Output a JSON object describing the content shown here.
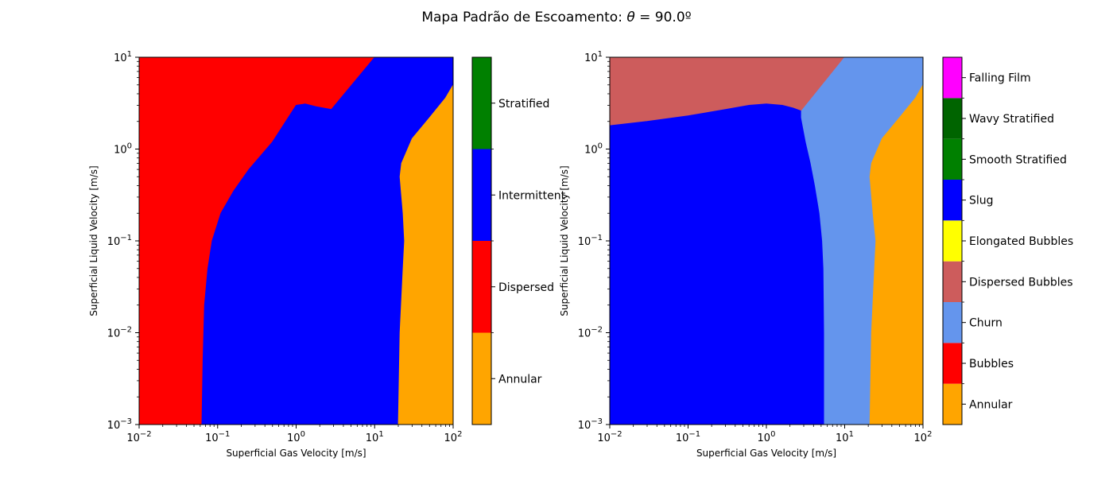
{
  "figure": {
    "title_prefix": "Mapa Padrão de Escoamento: ",
    "title_theta": "θ",
    "title_suffix": " = 90.0º"
  },
  "chart_data": [
    {
      "type": "heatmap",
      "xlabel": "Superficial Gas Velocity [m/s]",
      "ylabel": "Superficial Liquid Velocity [m/s]",
      "xscale": "log",
      "yscale": "log",
      "xlim": [
        0.01,
        100
      ],
      "ylim": [
        0.001,
        10
      ],
      "xticks": [
        {
          "base": "10",
          "exp": "−2"
        },
        {
          "base": "10",
          "exp": "−1"
        },
        {
          "base": "10",
          "exp": "0"
        },
        {
          "base": "10",
          "exp": "1"
        },
        {
          "base": "10",
          "exp": "2"
        }
      ],
      "yticks": [
        {
          "base": "10",
          "exp": "−3"
        },
        {
          "base": "10",
          "exp": "−2"
        },
        {
          "base": "10",
          "exp": "−1"
        },
        {
          "base": "10",
          "exp": "0"
        },
        {
          "base": "10",
          "exp": "1"
        }
      ],
      "colorbar": [
        {
          "label": "Annular",
          "color": "#ffa500"
        },
        {
          "label": "Dispersed",
          "color": "#ff0000"
        },
        {
          "label": "Intermittent",
          "color": "#0000ff"
        },
        {
          "label": "Stratified",
          "color": "#008000"
        }
      ],
      "regions": [
        {
          "pattern": "Dispersed",
          "color": "#ff0000",
          "polygon": [
            [
              0.01,
              0.001
            ],
            [
              0.063,
              0.001
            ],
            [
              0.065,
              0.005
            ],
            [
              0.068,
              0.02
            ],
            [
              0.075,
              0.05
            ],
            [
              0.085,
              0.1
            ],
            [
              0.11,
              0.2
            ],
            [
              0.16,
              0.35
            ],
            [
              0.25,
              0.6
            ],
            [
              0.5,
              1.2
            ],
            [
              1.0,
              3.0
            ],
            [
              1.3,
              3.1
            ],
            [
              1.8,
              2.9
            ],
            [
              2.8,
              2.7
            ],
            [
              10,
              10
            ],
            [
              0.01,
              10
            ]
          ]
        },
        {
          "pattern": "Intermittent",
          "color": "#0000ff",
          "polygon": [
            [
              0.063,
              0.001
            ],
            [
              20,
              0.001
            ],
            [
              21,
              0.01
            ],
            [
              23,
              0.05
            ],
            [
              24,
              0.1
            ],
            [
              23,
              0.2
            ],
            [
              21,
              0.5
            ],
            [
              22,
              0.7
            ],
            [
              30,
              1.3
            ],
            [
              50,
              2.2
            ],
            [
              80,
              3.6
            ],
            [
              100,
              5
            ],
            [
              100,
              10
            ],
            [
              10,
              10
            ],
            [
              2.8,
              2.7
            ],
            [
              1.8,
              2.9
            ],
            [
              1.3,
              3.1
            ],
            [
              1.0,
              3.0
            ],
            [
              0.5,
              1.2
            ],
            [
              0.25,
              0.6
            ],
            [
              0.16,
              0.35
            ],
            [
              0.11,
              0.2
            ],
            [
              0.085,
              0.1
            ],
            [
              0.075,
              0.05
            ],
            [
              0.068,
              0.02
            ],
            [
              0.065,
              0.005
            ]
          ]
        },
        {
          "pattern": "Annular",
          "color": "#ffa500",
          "polygon": [
            [
              20,
              0.001
            ],
            [
              100,
              0.001
            ],
            [
              100,
              5
            ],
            [
              80,
              3.6
            ],
            [
              50,
              2.2
            ],
            [
              30,
              1.3
            ],
            [
              22,
              0.7
            ],
            [
              21,
              0.5
            ],
            [
              23,
              0.2
            ],
            [
              24,
              0.1
            ],
            [
              23,
              0.05
            ],
            [
              21,
              0.01
            ]
          ]
        }
      ]
    },
    {
      "type": "heatmap",
      "xlabel": "Superficial Gas Velocity [m/s]",
      "ylabel": "Superficial Liquid Velocity [m/s]",
      "xscale": "log",
      "yscale": "log",
      "xlim": [
        0.01,
        100
      ],
      "ylim": [
        0.001,
        10
      ],
      "xticks": [
        {
          "base": "10",
          "exp": "−2"
        },
        {
          "base": "10",
          "exp": "−1"
        },
        {
          "base": "10",
          "exp": "0"
        },
        {
          "base": "10",
          "exp": "1"
        },
        {
          "base": "10",
          "exp": "2"
        }
      ],
      "yticks": [
        {
          "base": "10",
          "exp": "−3"
        },
        {
          "base": "10",
          "exp": "−2"
        },
        {
          "base": "10",
          "exp": "−1"
        },
        {
          "base": "10",
          "exp": "0"
        },
        {
          "base": "10",
          "exp": "1"
        }
      ],
      "colorbar": [
        {
          "label": "Annular",
          "color": "#ffa500"
        },
        {
          "label": "Bubbles",
          "color": "#ff0000"
        },
        {
          "label": "Churn",
          "color": "#6495ed"
        },
        {
          "label": "Dispersed Bubbles",
          "color": "#cd5c5c"
        },
        {
          "label": "Elongated Bubbles",
          "color": "#ffff00"
        },
        {
          "label": "Slug",
          "color": "#0000ff"
        },
        {
          "label": "Smooth Stratified",
          "color": "#008000"
        },
        {
          "label": "Wavy Stratified",
          "color": "#006400"
        },
        {
          "label": "Falling Film",
          "color": "#ff00ff"
        }
      ],
      "regions": [
        {
          "pattern": "Dispersed Bubbles",
          "color": "#cd5c5c",
          "polygon": [
            [
              0.01,
              1.8
            ],
            [
              0.03,
              2.0
            ],
            [
              0.1,
              2.3
            ],
            [
              0.3,
              2.7
            ],
            [
              0.6,
              3.0
            ],
            [
              1.0,
              3.1
            ],
            [
              1.6,
              3.0
            ],
            [
              2.2,
              2.8
            ],
            [
              2.8,
              2.6
            ],
            [
              10,
              10
            ],
            [
              0.01,
              10
            ]
          ]
        },
        {
          "pattern": "Slug",
          "color": "#0000ff",
          "polygon": [
            [
              0.01,
              0.001
            ],
            [
              5.5,
              0.001
            ],
            [
              5.5,
              0.01
            ],
            [
              5.4,
              0.05
            ],
            [
              5.2,
              0.1
            ],
            [
              4.8,
              0.2
            ],
            [
              4.2,
              0.4
            ],
            [
              3.7,
              0.7
            ],
            [
              3.2,
              1.2
            ],
            [
              2.8,
              2.2
            ],
            [
              2.8,
              2.6
            ],
            [
              2.2,
              2.8
            ],
            [
              1.6,
              3.0
            ],
            [
              1.0,
              3.1
            ],
            [
              0.6,
              3.0
            ],
            [
              0.3,
              2.7
            ],
            [
              0.1,
              2.3
            ],
            [
              0.03,
              2.0
            ],
            [
              0.01,
              1.8
            ]
          ]
        },
        {
          "pattern": "Churn",
          "color": "#6495ed",
          "polygon": [
            [
              5.5,
              0.001
            ],
            [
              21,
              0.001
            ],
            [
              22,
              0.01
            ],
            [
              24,
              0.05
            ],
            [
              25,
              0.1
            ],
            [
              23,
              0.2
            ],
            [
              21,
              0.5
            ],
            [
              22,
              0.7
            ],
            [
              30,
              1.3
            ],
            [
              50,
              2.2
            ],
            [
              80,
              3.6
            ],
            [
              100,
              5
            ],
            [
              100,
              10
            ],
            [
              10,
              10
            ],
            [
              2.8,
              2.6
            ],
            [
              2.8,
              2.2
            ],
            [
              3.2,
              1.2
            ],
            [
              3.7,
              0.7
            ],
            [
              4.2,
              0.4
            ],
            [
              4.8,
              0.2
            ],
            [
              5.2,
              0.1
            ],
            [
              5.4,
              0.05
            ],
            [
              5.5,
              0.01
            ]
          ]
        },
        {
          "pattern": "Annular",
          "color": "#ffa500",
          "polygon": [
            [
              21,
              0.001
            ],
            [
              100,
              0.001
            ],
            [
              100,
              5
            ],
            [
              80,
              3.6
            ],
            [
              50,
              2.2
            ],
            [
              30,
              1.3
            ],
            [
              22,
              0.7
            ],
            [
              21,
              0.5
            ],
            [
              23,
              0.2
            ],
            [
              25,
              0.1
            ],
            [
              24,
              0.05
            ],
            [
              22,
              0.01
            ]
          ]
        }
      ]
    }
  ]
}
